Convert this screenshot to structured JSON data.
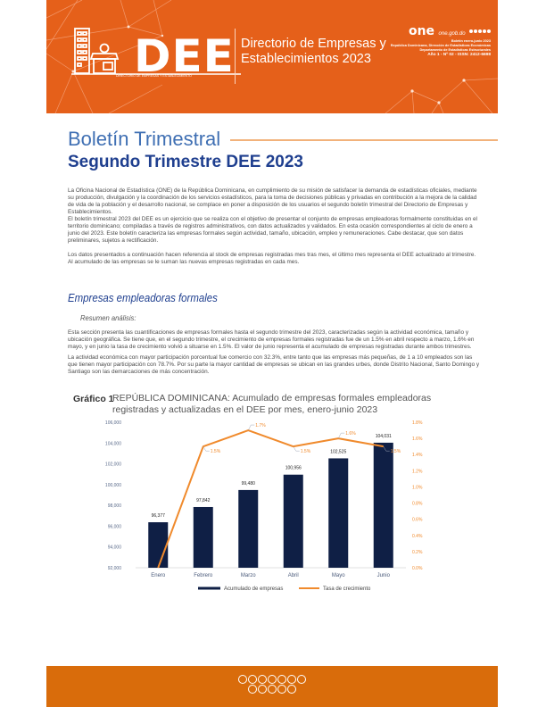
{
  "header": {
    "logo_text": "DEE",
    "logo_subtitle": "DIRECTORIO DE EMPRESAS Y ESTABLECIMIENTO",
    "directory_title_line1": "Directorio de Empresas y",
    "directory_title_line2": "Establecimientos 2023",
    "one_logo": "one",
    "one_url": "one.gob.do",
    "meta_line1": "Boletín enero-junio 2023",
    "meta_line2": "República Dominicana, Dirección de Estadísticas Económicas",
    "meta_line3": "Departamento de Estadísticas Estructurales",
    "meta_line4": "Año 1 - Nº 02 - ISSN: 2412-6698",
    "brand_color": "#e5601a"
  },
  "title": {
    "main": "Boletín Trimestral",
    "sub": "Segundo Trimestre DEE 2023"
  },
  "intro": {
    "p1": "La Oficina Nacional de Estadística (ONE) de la República Dominicana, en cumplimiento de su misión de satisfacer la demanda de estadísticas oficiales, mediante su producción, divulgación y la coordinación de los servicios estadísticos, para la toma de decisiones públicas y privadas en contribución a la mejora de la calidad de vida de la población y el desarrollo nacional, se complace en poner a disposición de los usuarios el segundo boletín trimestral del Directorio de Empresas y Establecimientos.",
    "p2": "El boletín trimestral 2023 del DEE es un ejercicio que se realiza con el objetivo de presentar el conjunto de empresas empleadoras formalmente constituidas en el territorio dominicano; compiladas a través de registros administrativos, con datos actualizados y validados. En esta ocasión correspondientes al ciclo de enero a junio del 2023. Este boletín caracteriza las empresas formales según actividad, tamaño, ubicación, empleo y remuneraciones. Cabe destacar, que son datos preliminares, sujetos a rectificación.",
    "p3": "Los datos presentados a continuación hacen referencia al stock de empresas registradas mes tras mes, el último mes representa el DEE actualizado al trimestre. Al acumulado de las empresas se le suman las nuevas empresas registradas en cada mes."
  },
  "section": {
    "title": "Empresas empleadoras formales",
    "subtitle": "Resumen análisis:",
    "p1": "Esta sección presenta las cuantificaciones de empresas formales hasta el segundo trimestre del 2023, caracterizadas según la actividad económica, tamaño y ubicación geográfica. Se tiene que, en el segundo trimestre, el crecimiento de empresas formales registradas fue de un 1.5% en abril respecto a marzo, 1.6% en mayo, y en junio la tasa de crecimiento volvió a situarse en 1.5%.  El valor de junio representa el acumulado de empresas registradas durante ambos trimestres.",
    "p2": "La actividad económica con mayor participación porcentual fue comercio con 32.3%, entre tanto que las empresas más pequeñas, de 1 a 10 empleados son las que tienen mayor participación con 78.7%. Por su parte la mayor cantidad de empresas se ubican en las grandes urbes, donde Distrito Nacional, Santo Domingo y Santiago son las demarcaciones de más concentración."
  },
  "figure": {
    "label": "Gráfico 1",
    "title": "REPÚBLICA DOMINICANA: Acumulado de empresas formales empleadoras registradas y actualizadas en el DEE por mes, enero-junio 2023"
  },
  "chart_data": {
    "type": "bar",
    "title": "REPÚBLICA DOMINICANA: Acumulado de empresas formales empleadoras registradas y actualizadas en el DEE por mes, enero-junio 2023",
    "categories": [
      "Enero",
      "Febrero",
      "Marzo",
      "Abril",
      "Mayo",
      "Junio"
    ],
    "series": [
      {
        "name": "Acumulado de empresas",
        "type": "bar",
        "axis": "left",
        "color": "#0f1f45",
        "values": [
          96377,
          97842,
          99480,
          100956,
          102525,
          104031
        ],
        "labels": [
          "96,377",
          "97,842",
          "99,480",
          "100,956",
          "102,525",
          "104,031"
        ]
      },
      {
        "name": "Tasa de crecimiento",
        "type": "line",
        "axis": "right",
        "color": "#f08a2c",
        "values": [
          0.0,
          1.5,
          1.7,
          1.5,
          1.6,
          1.5
        ],
        "labels": [
          "",
          "1.5%",
          "1.7%",
          "1.5%",
          "1.6%",
          "1.5%"
        ]
      }
    ],
    "ylim": [
      92000,
      106000
    ],
    "y_ticks": [
      "92,000",
      "94,000",
      "96,000",
      "98,000",
      "100,000",
      "102,000",
      "104,000",
      "106,000"
    ],
    "y2lim": [
      0.0,
      1.8
    ],
    "y2_ticks": [
      "0.0%",
      "0.2%",
      "0.4%",
      "0.6%",
      "0.8%",
      "1.0%",
      "1.2%",
      "1.4%",
      "1.6%",
      "1.8%"
    ],
    "xlabel": "",
    "ylabel": "",
    "grid": false,
    "legend_position": "bottom"
  },
  "footer": {
    "color": "#d96c0b",
    "icons_row1": 7,
    "icons_row2": 5
  }
}
